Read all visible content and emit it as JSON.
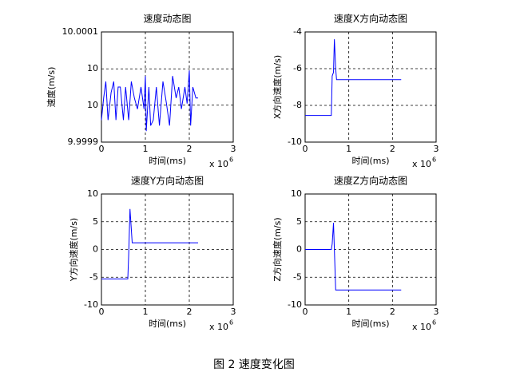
{
  "caption": "图 2 速度变化图",
  "chart_data": [
    {
      "type": "line",
      "title": "速度动态图",
      "x_label": "时间(ms)",
      "y_label": "速度(m/s)",
      "x_multiplier": "x 10",
      "x_multiplier_exp": "6",
      "xlim": [
        0,
        3
      ],
      "xticks": [
        0,
        1,
        2,
        3
      ],
      "ylim": [
        9.9999,
        10.0001
      ],
      "yticks": [
        {
          "value": 9.9999,
          "label": "9.9999"
        },
        {
          "value": 9.999967,
          "label": "10"
        },
        {
          "value": 10.000033,
          "label": "10"
        },
        {
          "value": 10.0001,
          "label": "10.0001"
        }
      ],
      "grid": true,
      "color": "#0000ff",
      "x": [
        0,
        0.05,
        0.1,
        0.15,
        0.22,
        0.28,
        0.33,
        0.38,
        0.43,
        0.5,
        0.55,
        0.62,
        0.68,
        0.75,
        0.82,
        0.9,
        0.97,
        1.0,
        1.02,
        1.08,
        1.12,
        1.18,
        1.25,
        1.32,
        1.4,
        1.48,
        1.55,
        1.62,
        1.7,
        1.76,
        1.82,
        1.9,
        1.95,
        2.0,
        2.03,
        2.08,
        2.15,
        2.2
      ],
      "values": [
        9.99994,
        9.99998,
        10.00001,
        9.99994,
        9.99999,
        10.00001,
        9.99994,
        10.0,
        10.0,
        9.99994,
        10.0,
        9.99994,
        10.00001,
        9.99998,
        9.99996,
        10.0,
        9.99996,
        10.00002,
        9.99992,
        10.0,
        9.99993,
        9.99994,
        10.0,
        9.99993,
        10.00001,
        9.99997,
        9.99993,
        10.00002,
        9.99998,
        10.0,
        9.99996,
        10.0,
        9.99997,
        10.00003,
        9.99993,
        10.0,
        9.99998,
        9.99998
      ]
    },
    {
      "type": "line",
      "title": "速度X方向动态图",
      "x_label": "时间(ms)",
      "y_label": "X方向速度(m/s)",
      "x_multiplier": "x 10",
      "x_multiplier_exp": "6",
      "xlim": [
        0,
        3
      ],
      "xticks": [
        0,
        1,
        2,
        3
      ],
      "ylim": [
        -10,
        -4
      ],
      "yticks": [
        -10,
        -8,
        -6,
        -4
      ],
      "grid": true,
      "color": "#0000ff",
      "x": [
        0,
        0.6,
        0.62,
        0.65,
        0.67,
        0.7,
        0.72,
        2.2
      ],
      "values": [
        -8.55,
        -8.55,
        -6.4,
        -6.2,
        -4.4,
        -6.0,
        -6.6,
        -6.6
      ]
    },
    {
      "type": "line",
      "title": "速度Y方向动态图",
      "x_label": "时间(ms)",
      "y_label": "Y方向速度(m/s)",
      "x_multiplier": "x 10",
      "x_multiplier_exp": "6",
      "xlim": [
        0,
        3
      ],
      "xticks": [
        0,
        1,
        2,
        3
      ],
      "ylim": [
        -10,
        10
      ],
      "yticks": [
        -10,
        -5,
        0,
        5,
        10
      ],
      "grid": true,
      "color": "#0000ff",
      "x": [
        0,
        0.6,
        0.62,
        0.65,
        0.7,
        2.2
      ],
      "values": [
        -5.3,
        -5.3,
        -1,
        7.3,
        1.2,
        1.2
      ]
    },
    {
      "type": "line",
      "title": "速度Z方向动态图",
      "x_label": "时间(ms)",
      "y_label": "Z方向速度(m/s)",
      "x_multiplier": "x 10",
      "x_multiplier_exp": "6",
      "xlim": [
        0,
        3
      ],
      "xticks": [
        0,
        1,
        2,
        3
      ],
      "ylim": [
        -10,
        10
      ],
      "yticks": [
        -10,
        -5,
        0,
        5,
        10
      ],
      "grid": true,
      "color": "#0000ff",
      "x": [
        0,
        0.6,
        0.62,
        0.65,
        0.7,
        2.2
      ],
      "values": [
        0,
        0,
        1,
        4.8,
        -7.3,
        -7.3
      ]
    }
  ]
}
